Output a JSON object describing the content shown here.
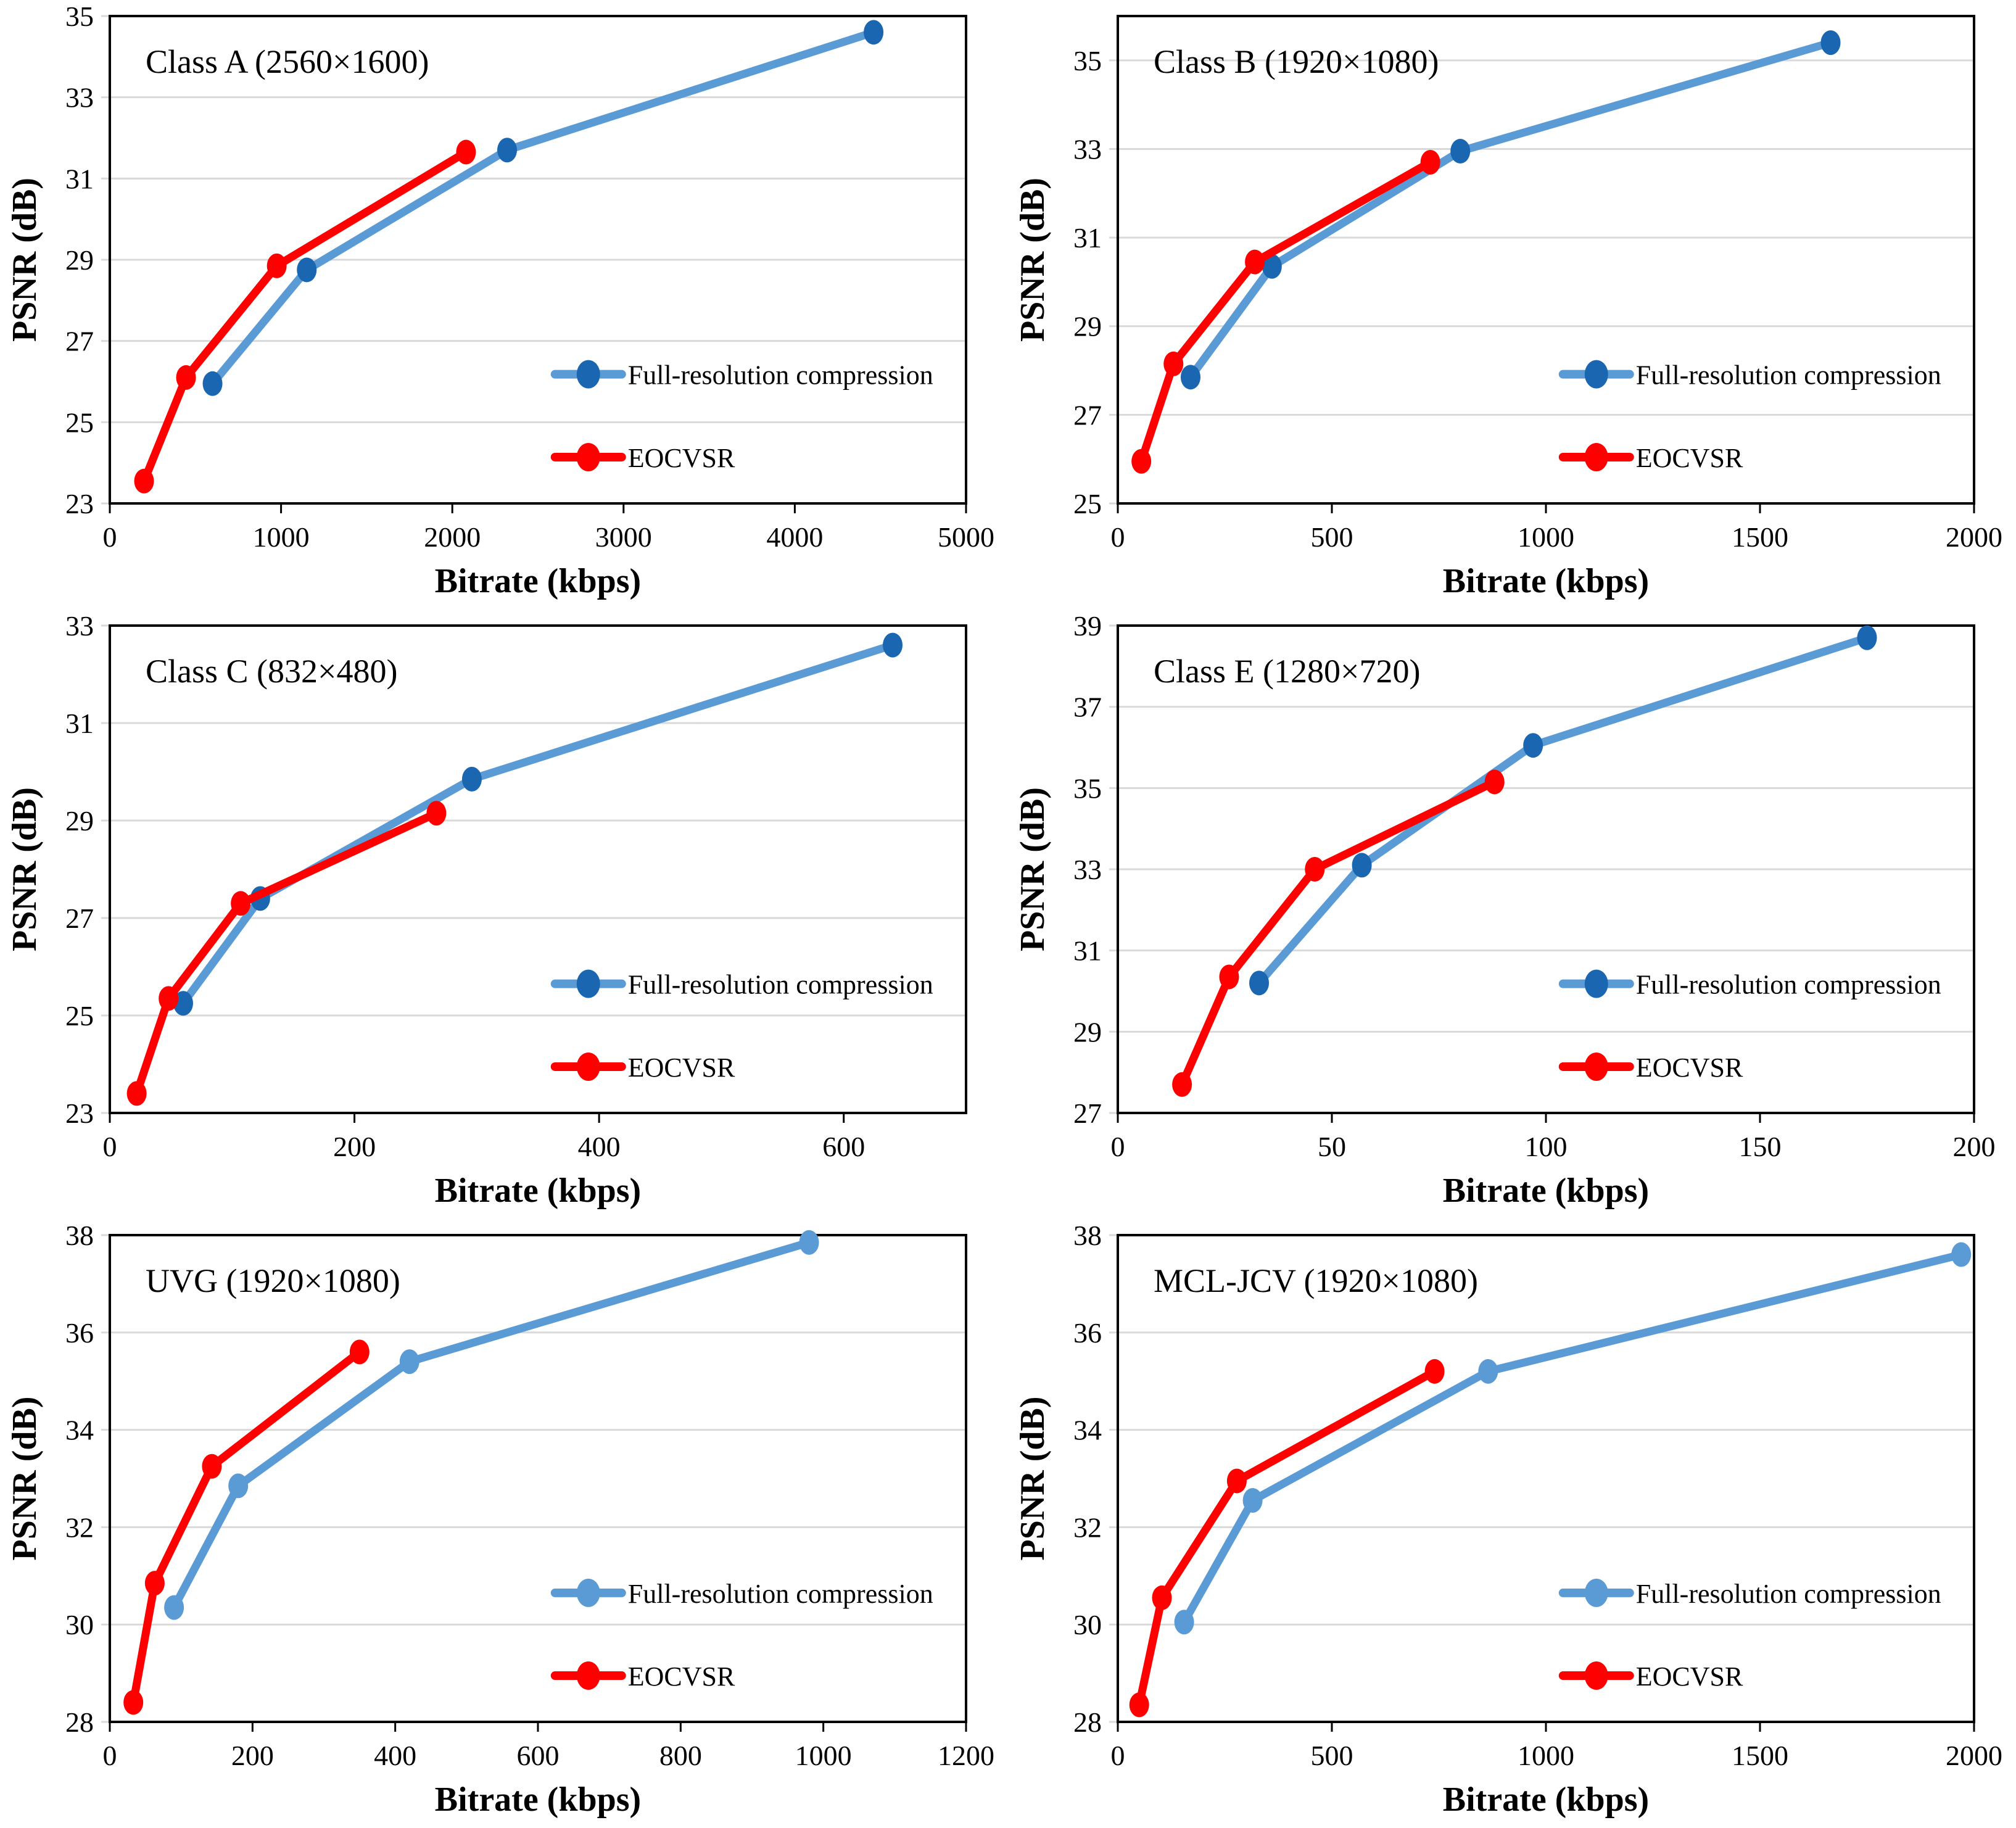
{
  "figure": {
    "background": "#FFFFFF",
    "grid_color": "#D9D9D9",
    "border_color": "#000000",
    "text_color": "#000000"
  },
  "legend": {
    "full_res_label": "Full-resolution compression",
    "eocvsr_label": "EOCVSR"
  },
  "chart_data": [
    {
      "type": "line",
      "title": "Class A (2560×1600)",
      "xlabel": "Bitrate (kbps)",
      "ylabel": "PSNR (dB)",
      "xlim": [
        0,
        5000
      ],
      "ylim": [
        23,
        35
      ],
      "xticks": [
        0,
        1000,
        2000,
        3000,
        4000,
        5000
      ],
      "yticks": [
        23,
        25,
        27,
        29,
        31,
        33,
        35
      ],
      "grid": "horizontal",
      "legend_position": "inside-right-lower",
      "series": [
        {
          "name": "Full-resolution compression",
          "line_color": "#5B9BD5",
          "marker_color": "#1A66B0",
          "points": [
            [
              600,
              25.95
            ],
            [
              1150,
              28.75
            ],
            [
              2320,
              31.7
            ],
            [
              4460,
              34.6
            ]
          ]
        },
        {
          "name": "EOCVSR",
          "line_color": "#FF0000",
          "marker_color": "#FF0000",
          "points": [
            [
              200,
              23.55
            ],
            [
              445,
              26.1
            ],
            [
              975,
              28.85
            ],
            [
              2080,
              31.65
            ]
          ]
        }
      ]
    },
    {
      "type": "line",
      "title": "Class B (1920×1080)",
      "xlabel": "Bitrate (kbps)",
      "ylabel": "PSNR (dB)",
      "xlim": [
        0,
        2000
      ],
      "ylim": [
        25,
        36
      ],
      "xticks": [
        0,
        500,
        1000,
        1500,
        2000
      ],
      "yticks": [
        25,
        27,
        29,
        31,
        33,
        35
      ],
      "grid": "horizontal",
      "legend_position": "inside-right-lower",
      "series": [
        {
          "name": "Full-resolution compression",
          "line_color": "#5B9BD5",
          "marker_color": "#1A66B0",
          "points": [
            [
              170,
              27.85
            ],
            [
              360,
              30.35
            ],
            [
              800,
              32.95
            ],
            [
              1665,
              35.4
            ]
          ]
        },
        {
          "name": "EOCVSR",
          "line_color": "#FF0000",
          "marker_color": "#FF0000",
          "points": [
            [
              55,
              25.95
            ],
            [
              130,
              28.15
            ],
            [
              320,
              30.45
            ],
            [
              730,
              32.7
            ]
          ]
        }
      ]
    },
    {
      "type": "line",
      "title": "Class C (832×480)",
      "xlabel": "Bitrate (kbps)",
      "ylabel": "PSNR (dB)",
      "xlim": [
        0,
        700
      ],
      "ylim": [
        23,
        33
      ],
      "xticks": [
        0,
        200,
        400,
        600
      ],
      "yticks": [
        23,
        25,
        27,
        29,
        31,
        33
      ],
      "grid": "horizontal",
      "legend_position": "inside-right-lower",
      "series": [
        {
          "name": "Full-resolution compression",
          "line_color": "#5B9BD5",
          "marker_color": "#1A66B0",
          "points": [
            [
              60,
              25.25
            ],
            [
              123,
              27.4
            ],
            [
              296,
              29.85
            ],
            [
              640,
              32.6
            ]
          ]
        },
        {
          "name": "EOCVSR",
          "line_color": "#FF0000",
          "marker_color": "#FF0000",
          "points": [
            [
              22,
              23.4
            ],
            [
              48,
              25.35
            ],
            [
              107,
              27.3
            ],
            [
              267,
              29.15
            ]
          ]
        }
      ]
    },
    {
      "type": "line",
      "title": "Class E (1280×720)",
      "xlabel": "Bitrate (kbps)",
      "ylabel": "PSNR (dB)",
      "xlim": [
        0,
        200
      ],
      "ylim": [
        27,
        39
      ],
      "xticks": [
        0,
        50,
        100,
        150,
        200
      ],
      "yticks": [
        27,
        29,
        31,
        33,
        35,
        37,
        39
      ],
      "grid": "horizontal",
      "legend_position": "inside-right-lower",
      "series": [
        {
          "name": "Full-resolution compression",
          "line_color": "#5B9BD5",
          "marker_color": "#1A66B0",
          "points": [
            [
              33,
              30.2
            ],
            [
              57,
              33.1
            ],
            [
              97,
              36.05
            ],
            [
              175,
              38.7
            ]
          ]
        },
        {
          "name": "EOCVSR",
          "line_color": "#FF0000",
          "marker_color": "#FF0000",
          "points": [
            [
              15,
              27.7
            ],
            [
              26,
              30.35
            ],
            [
              46,
              33.0
            ],
            [
              88,
              35.15
            ]
          ]
        }
      ]
    },
    {
      "type": "line",
      "title": "UVG (1920×1080)",
      "xlabel": "Bitrate (kbps)",
      "ylabel": "PSNR (dB)",
      "xlim": [
        0,
        1200
      ],
      "ylim": [
        28,
        38
      ],
      "xticks": [
        0,
        200,
        400,
        600,
        800,
        1000,
        1200
      ],
      "yticks": [
        28,
        30,
        32,
        34,
        36,
        38
      ],
      "grid": "horizontal",
      "legend_position": "inside-right-lower",
      "series": [
        {
          "name": "Full-resolution compression",
          "line_color": "#5B9BD5",
          "marker_color": "#5B9BD5",
          "points": [
            [
              90,
              30.35
            ],
            [
              180,
              32.85
            ],
            [
              420,
              35.4
            ],
            [
              980,
              37.85
            ]
          ]
        },
        {
          "name": "EOCVSR",
          "line_color": "#FF0000",
          "marker_color": "#FF0000",
          "points": [
            [
              33,
              28.4
            ],
            [
              63,
              30.85
            ],
            [
              143,
              33.25
            ],
            [
              350,
              35.6
            ]
          ]
        }
      ]
    },
    {
      "type": "line",
      "title": "MCL-JCV (1920×1080)",
      "xlabel": "Bitrate (kbps)",
      "ylabel": "PSNR (dB)",
      "xlim": [
        0,
        2000
      ],
      "ylim": [
        28,
        38
      ],
      "xticks": [
        0,
        500,
        1000,
        1500,
        2000
      ],
      "yticks": [
        28,
        30,
        32,
        34,
        36,
        38
      ],
      "grid": "horizontal",
      "legend_position": "inside-right-lower",
      "series": [
        {
          "name": "Full-resolution compression",
          "line_color": "#5B9BD5",
          "marker_color": "#5B9BD5",
          "points": [
            [
              155,
              30.05
            ],
            [
              315,
              32.55
            ],
            [
              865,
              35.2
            ],
            [
              1970,
              37.6
            ]
          ]
        },
        {
          "name": "EOCVSR",
          "line_color": "#FF0000",
          "marker_color": "#FF0000",
          "points": [
            [
              50,
              28.35
            ],
            [
              103,
              30.55
            ],
            [
              278,
              32.95
            ],
            [
              740,
              35.2
            ]
          ]
        }
      ]
    }
  ]
}
